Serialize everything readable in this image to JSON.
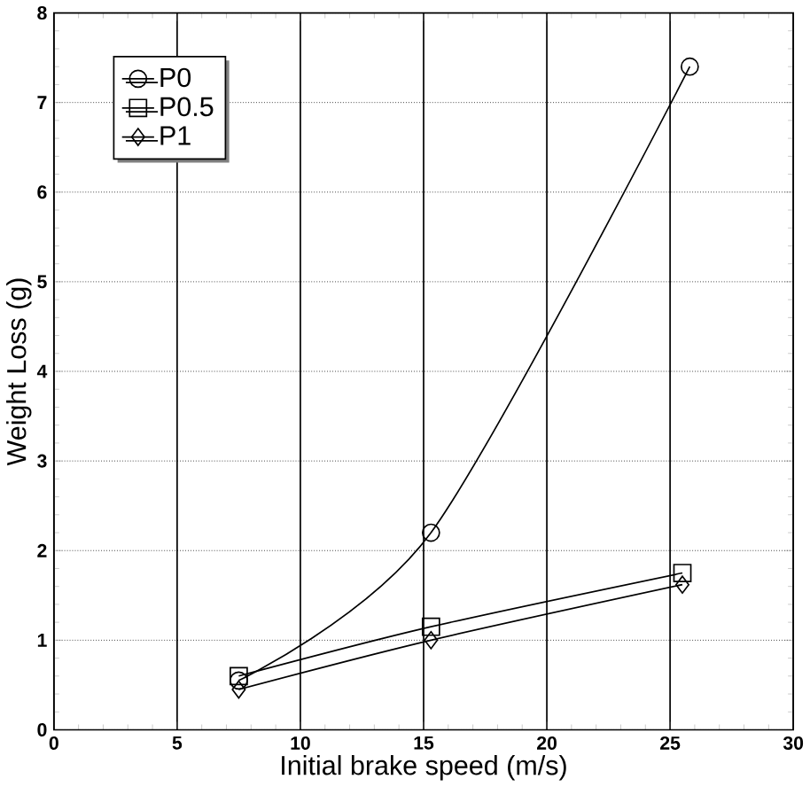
{
  "chart_data": {
    "type": "line",
    "xlabel": "Initial brake speed (m/s)",
    "ylabel": "Weight Loss (g)",
    "xlim": [
      0,
      30
    ],
    "xticks": [
      0,
      5,
      10,
      15,
      20,
      25,
      30
    ],
    "ylim": [
      0,
      8
    ],
    "yticks": [
      0,
      1,
      2,
      3,
      4,
      5,
      6,
      7,
      8
    ],
    "grid": true,
    "legend": "top left",
    "series": [
      {
        "name": "P0",
        "color": "#000000",
        "marker": "circle",
        "x": [
          7.5,
          15.3,
          25.8
        ],
        "values": [
          0.55,
          2.2,
          7.4
        ]
      },
      {
        "name": "P0.5",
        "color": "#000000",
        "marker": "square",
        "x": [
          7.5,
          15.3,
          25.5
        ],
        "values": [
          0.6,
          1.15,
          1.75
        ]
      },
      {
        "name": "P1",
        "color": "#000000",
        "marker": "diamond",
        "x": [
          7.5,
          15.3,
          25.5
        ],
        "values": [
          0.45,
          1.0,
          1.62
        ]
      }
    ]
  }
}
